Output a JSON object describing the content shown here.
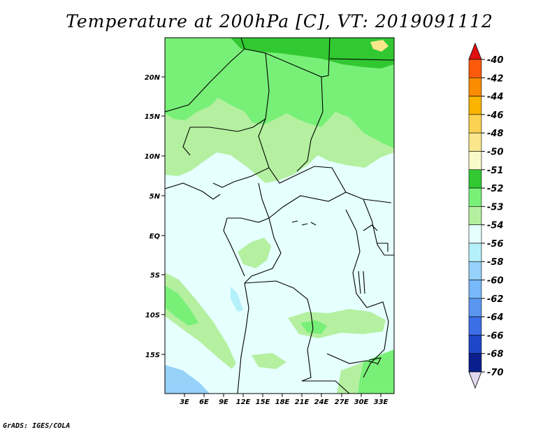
{
  "title": "Temperature at 200hPa [C], VT: 2019091112",
  "credit": "GrADS: IGES/COLA",
  "map": {
    "variable": "Temperature at 200hPa",
    "units": "C",
    "valid_time": "2019091112",
    "lat_ticks": [
      "20N",
      "15N",
      "10N",
      "5N",
      "EQ",
      "5S",
      "10S",
      "15S"
    ],
    "lon_ticks": [
      "3E",
      "6E",
      "9E",
      "12E",
      "15E",
      "18E",
      "21E",
      "24E",
      "27E",
      "30E",
      "33E"
    ]
  },
  "colorbar": {
    "levels": [
      "-40",
      "-42",
      "-44",
      "-46",
      "-48",
      "-50",
      "-51",
      "-52",
      "-53",
      "-54",
      "-56",
      "-58",
      "-60",
      "-62",
      "-64",
      "-66",
      "-68",
      "-70"
    ],
    "colors": [
      "#fa3c14",
      "#fa5a0a",
      "#fa8c00",
      "#fab400",
      "#fad250",
      "#fae68c",
      "#fafac8",
      "#32c832",
      "#78f078",
      "#b4f0a0",
      "#e6ffff",
      "#b4f0fa",
      "#96d2fa",
      "#78b9fa",
      "#5a96f0",
      "#3c6ee6",
      "#1e46c8",
      "#0a1e8c"
    ],
    "top_arrow_color": "#e01010",
    "bottom_arrow_color": "#e0d8ee"
  },
  "palette": {
    "very_cold": "#e6ffff",
    "cold": "#b4f0fa",
    "colder": "#96d2fa",
    "mid": "#b4f0a0",
    "warm": "#78f078",
    "warmer": "#32c832",
    "warmest": "#fae68c"
  }
}
